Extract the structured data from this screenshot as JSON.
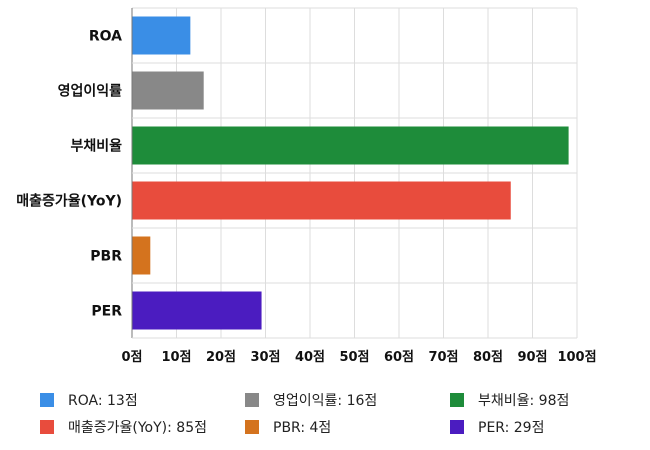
{
  "chart_data": {
    "type": "bar",
    "orientation": "horizontal",
    "categories": [
      "ROA",
      "영업이익률",
      "부채비율",
      "매출증가율(YoY)",
      "PBR",
      "PER"
    ],
    "values": [
      13,
      16,
      98,
      85,
      4,
      29
    ],
    "colors": [
      "#3a8ee6",
      "#888888",
      "#1e8c3a",
      "#e84c3d",
      "#d4731e",
      "#4b1cc0"
    ],
    "xlim": [
      0,
      100
    ],
    "xticks": [
      0,
      10,
      20,
      30,
      40,
      50,
      60,
      70,
      80,
      90,
      100
    ],
    "tick_suffix": "점",
    "grid": true,
    "legend_position": "bottom"
  },
  "legend": [
    {
      "label": "ROA: 13점",
      "color": "#3a8ee6"
    },
    {
      "label": "영업이익률: 16점",
      "color": "#888888"
    },
    {
      "label": "부채비율: 98점",
      "color": "#1e8c3a"
    },
    {
      "label": "매출증가율(YoY): 85점",
      "color": "#e84c3d"
    },
    {
      "label": "PBR: 4점",
      "color": "#d4731e"
    },
    {
      "label": "PER: 29점",
      "color": "#4b1cc0"
    }
  ]
}
